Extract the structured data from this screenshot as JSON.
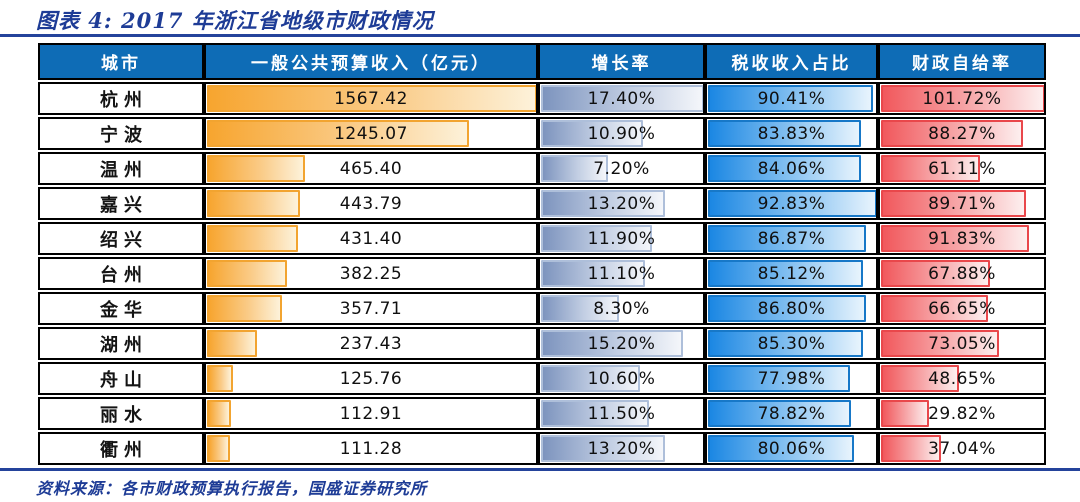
{
  "title": "图表 4: 2017 年浙江省地级市财政情况",
  "source": "资料来源：各市财政预算执行报告，国盛证券研究所",
  "colors": {
    "title_navy": "#1E3C96",
    "rule_navy": "#24439B",
    "header_blue": "#0E6CB6",
    "revenue_bar": "#F7A52F",
    "revenue_border": "#F2A430",
    "growth_bar": "#7D94BE",
    "growth_border": "#AEBFDA",
    "tax_bar": "#1B87E3",
    "tax_border": "#1778C8",
    "self_bar": "#F1585C",
    "self_border": "#E9474B",
    "grid_black": "#000000"
  },
  "table": {
    "headers": [
      "城市",
      "一般公共预算收入（亿元）",
      "增长率",
      "税收收入占比",
      "财政自给率"
    ],
    "rows": [
      {
        "city": "杭州",
        "revenue": {
          "value": 1567.42,
          "label": "1567.42"
        },
        "growth": {
          "value": 17.4,
          "label": "17.40%"
        },
        "tax": {
          "value": 90.41,
          "label": "90.41%"
        },
        "self": {
          "value": 101.72,
          "label": "101.72%"
        }
      },
      {
        "city": "宁波",
        "revenue": {
          "value": 1245.07,
          "label": "1245.07"
        },
        "growth": {
          "value": 10.9,
          "label": "10.90%"
        },
        "tax": {
          "value": 83.83,
          "label": "83.83%"
        },
        "self": {
          "value": 88.27,
          "label": "88.27%"
        }
      },
      {
        "city": "温州",
        "revenue": {
          "value": 465.4,
          "label": "465.40"
        },
        "growth": {
          "value": 7.2,
          "label": "7.20%"
        },
        "tax": {
          "value": 84.06,
          "label": "84.06%"
        },
        "self": {
          "value": 61.11,
          "label": "61.11%"
        }
      },
      {
        "city": "嘉兴",
        "revenue": {
          "value": 443.79,
          "label": "443.79"
        },
        "growth": {
          "value": 13.2,
          "label": "13.20%"
        },
        "tax": {
          "value": 92.83,
          "label": "92.83%"
        },
        "self": {
          "value": 89.71,
          "label": "89.71%"
        }
      },
      {
        "city": "绍兴",
        "revenue": {
          "value": 431.4,
          "label": "431.40"
        },
        "growth": {
          "value": 11.9,
          "label": "11.90%"
        },
        "tax": {
          "value": 86.87,
          "label": "86.87%"
        },
        "self": {
          "value": 91.83,
          "label": "91.83%"
        }
      },
      {
        "city": "台州",
        "revenue": {
          "value": 382.25,
          "label": "382.25"
        },
        "growth": {
          "value": 11.1,
          "label": "11.10%"
        },
        "tax": {
          "value": 85.12,
          "label": "85.12%"
        },
        "self": {
          "value": 67.88,
          "label": "67.88%"
        }
      },
      {
        "city": "金华",
        "revenue": {
          "value": 357.71,
          "label": "357.71"
        },
        "growth": {
          "value": 8.3,
          "label": "8.30%"
        },
        "tax": {
          "value": 86.8,
          "label": "86.80%"
        },
        "self": {
          "value": 66.65,
          "label": "66.65%"
        }
      },
      {
        "city": "湖州",
        "revenue": {
          "value": 237.43,
          "label": "237.43"
        },
        "growth": {
          "value": 15.2,
          "label": "15.20%"
        },
        "tax": {
          "value": 85.3,
          "label": "85.30%"
        },
        "self": {
          "value": 73.05,
          "label": "73.05%"
        }
      },
      {
        "city": "舟山",
        "revenue": {
          "value": 125.76,
          "label": "125.76"
        },
        "growth": {
          "value": 10.6,
          "label": "10.60%"
        },
        "tax": {
          "value": 77.98,
          "label": "77.98%"
        },
        "self": {
          "value": 48.65,
          "label": "48.65%"
        }
      },
      {
        "city": "丽水",
        "revenue": {
          "value": 112.91,
          "label": "112.91"
        },
        "growth": {
          "value": 11.5,
          "label": "11.50%"
        },
        "tax": {
          "value": 78.82,
          "label": "78.82%"
        },
        "self": {
          "value": 29.82,
          "label": "29.82%"
        }
      },
      {
        "city": "衢州",
        "revenue": {
          "value": 111.28,
          "label": "111.28"
        },
        "growth": {
          "value": 13.2,
          "label": "13.20%"
        },
        "tax": {
          "value": 80.06,
          "label": "80.06%"
        },
        "self": {
          "value": 37.04,
          "label": "37.04%"
        }
      }
    ]
  },
  "chart_data": {
    "type": "table",
    "title": "图表 4: 2017 年浙江省地级市财政情况",
    "columns": [
      "城市",
      "一般公共预算收入（亿元）",
      "增长率",
      "税收收入占比",
      "财政自给率"
    ],
    "categories": [
      "杭州",
      "宁波",
      "温州",
      "嘉兴",
      "绍兴",
      "台州",
      "金华",
      "湖州",
      "舟山",
      "丽水",
      "衢州"
    ],
    "series": [
      {
        "name": "一般公共预算收入（亿元）",
        "bar_style": "orange-gradient",
        "values": [
          1567.42,
          1245.07,
          465.4,
          443.79,
          431.4,
          382.25,
          357.71,
          237.43,
          125.76,
          112.91,
          111.28
        ]
      },
      {
        "name": "增长率(%)",
        "bar_style": "slate-blue-gradient",
        "values": [
          17.4,
          10.9,
          7.2,
          13.2,
          11.9,
          11.1,
          8.3,
          15.2,
          10.6,
          11.5,
          13.2
        ]
      },
      {
        "name": "税收收入占比(%)",
        "bar_style": "blue-gradient",
        "values": [
          90.41,
          83.83,
          84.06,
          92.83,
          86.87,
          85.12,
          86.8,
          85.3,
          77.98,
          78.82,
          80.06
        ]
      },
      {
        "name": "财政自给率(%)",
        "bar_style": "red-gradient",
        "values": [
          101.72,
          88.27,
          61.11,
          89.71,
          91.83,
          67.88,
          66.65,
          73.05,
          48.65,
          29.82,
          37.04
        ]
      }
    ],
    "layout": "data bars in each cell are scaled to the column maximum",
    "source": "资料来源：各市财政预算执行报告，国盛证券研究所"
  }
}
